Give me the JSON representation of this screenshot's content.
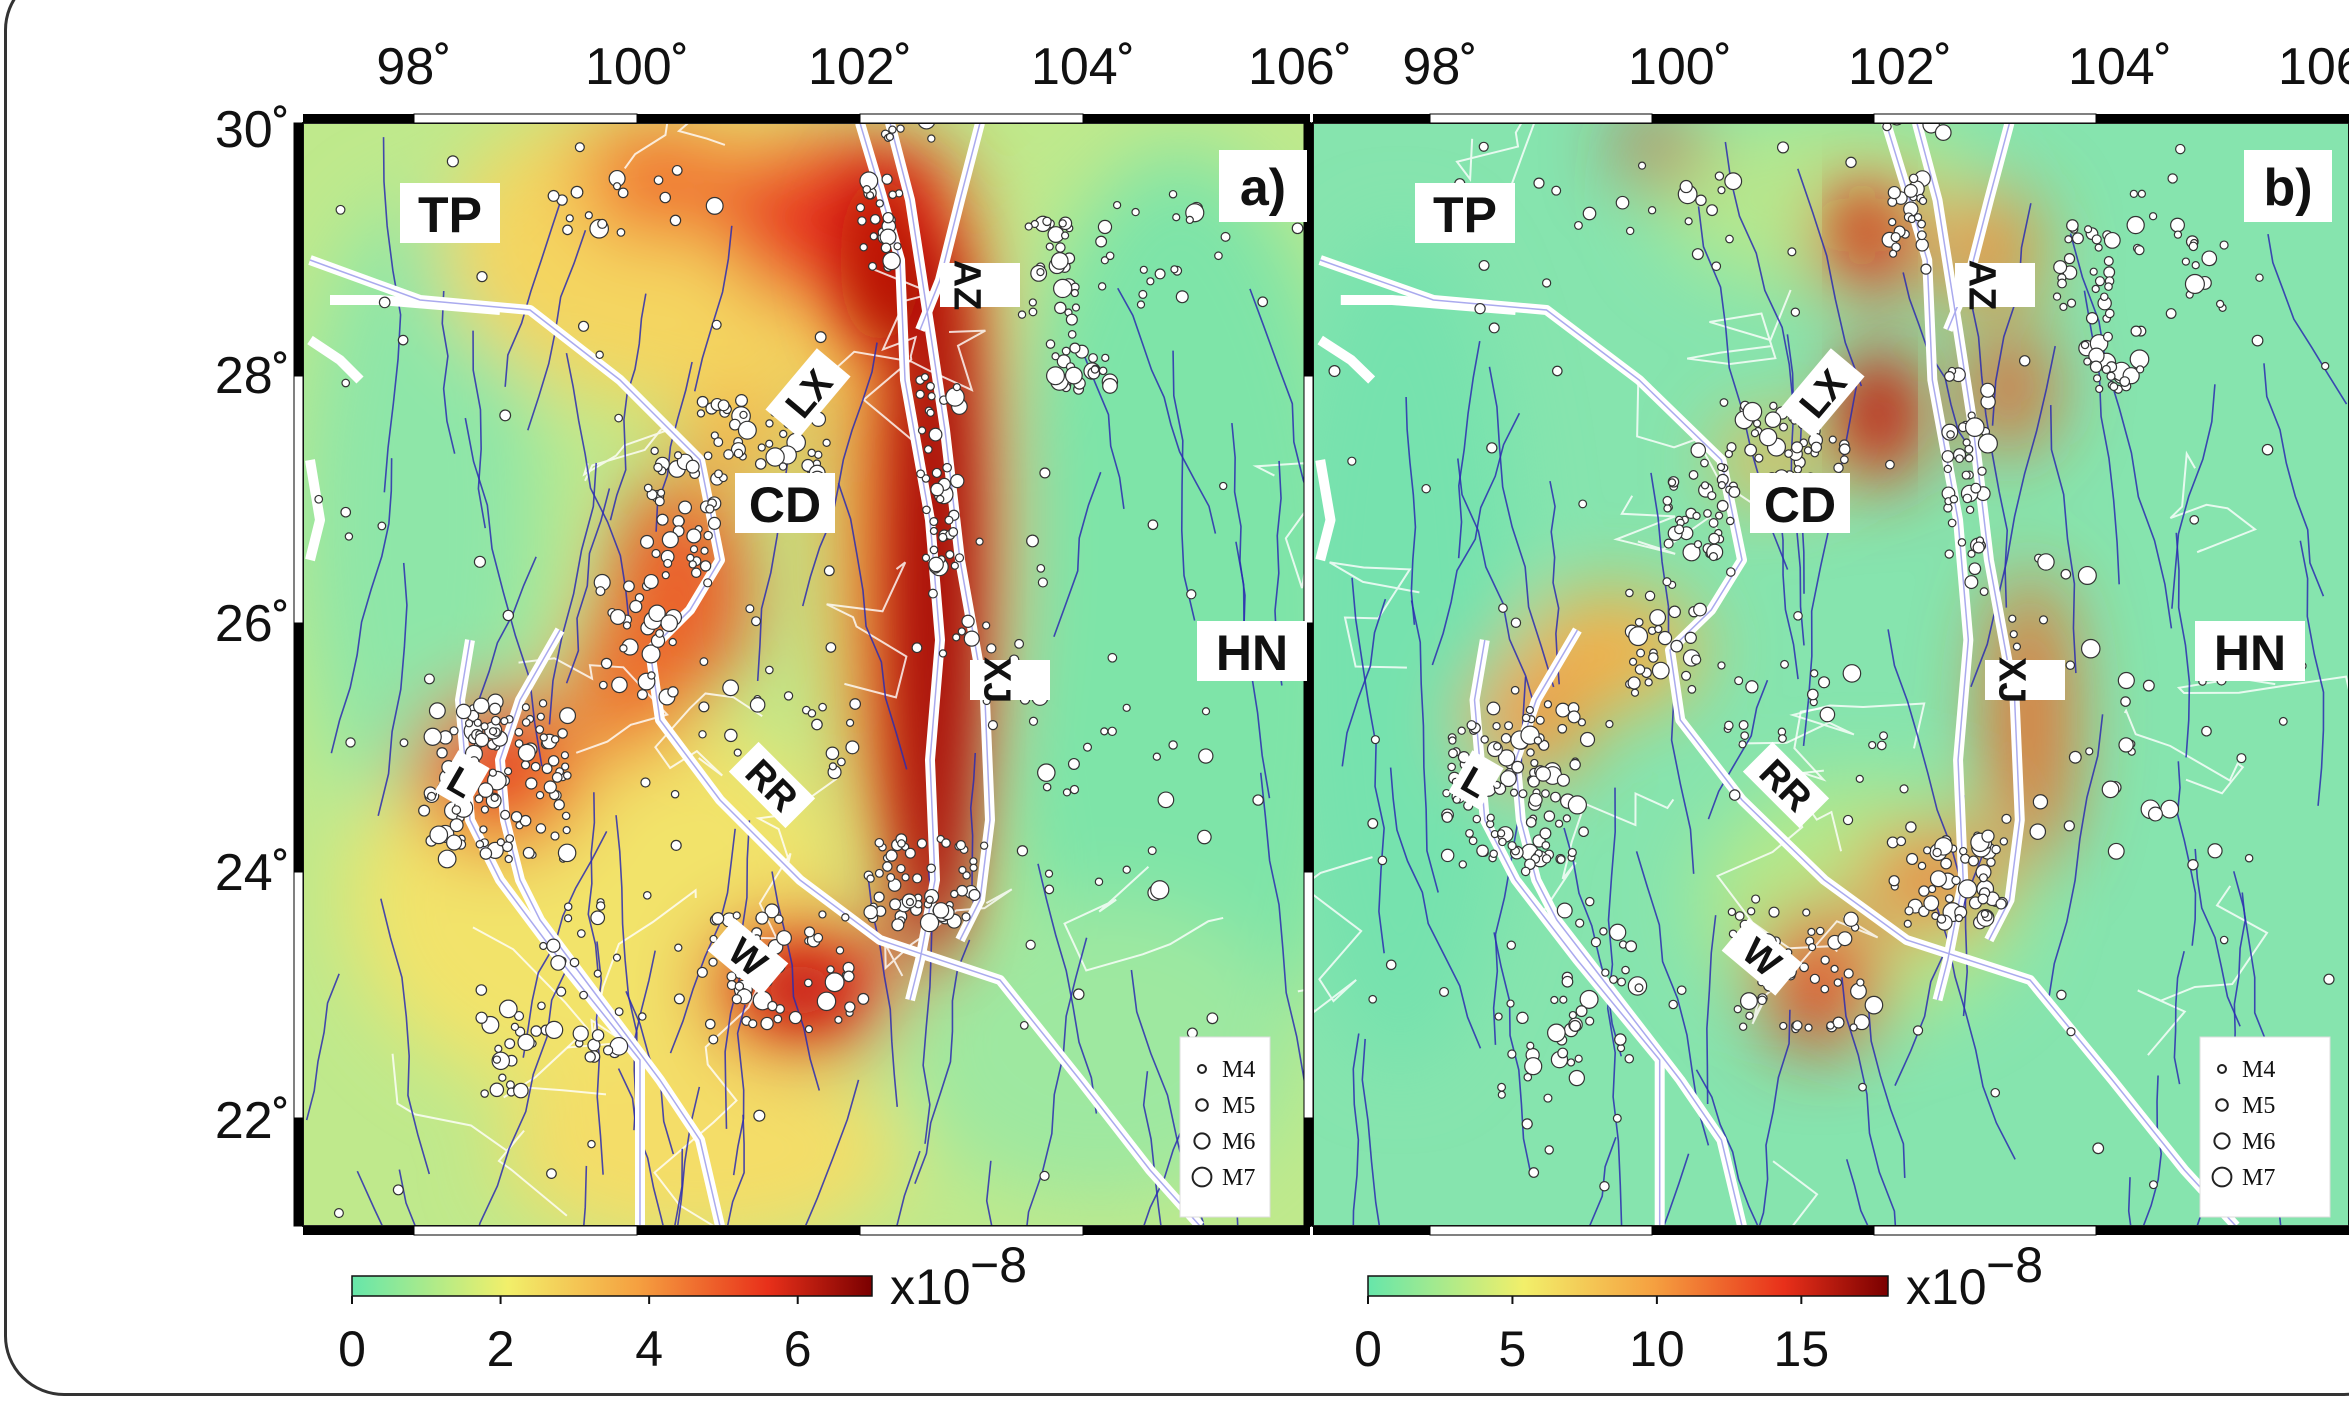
{
  "lon_ticks": [
    "98˚",
    "100˚",
    "102˚",
    "104˚",
    "106˚"
  ],
  "lat_ticks": [
    "30˚",
    "28˚",
    "26˚",
    "24˚",
    "22˚"
  ],
  "panels": [
    {
      "label": "a)",
      "regions": [
        "TP",
        "CD",
        "HN"
      ],
      "faults": [
        "AZ",
        "LX",
        "XJ",
        "RR",
        "W",
        "L"
      ],
      "legend": [
        "M4",
        "M5",
        "M6",
        "M7"
      ],
      "colorbar": {
        "ticks": [
          "0",
          "2",
          "4",
          "6"
        ],
        "multiplier": "x10",
        "exponent": "−8",
        "max": 7
      }
    },
    {
      "label": "b)",
      "regions": [
        "TP",
        "CD",
        "HN"
      ],
      "faults": [
        "AZ",
        "LX",
        "XJ",
        "RR",
        "W",
        "L"
      ],
      "legend": [
        "M4",
        "M5",
        "M6",
        "M7"
      ],
      "colorbar": {
        "ticks": [
          "0",
          "5",
          "10",
          "15"
        ],
        "multiplier": "x10",
        "exponent": "−8",
        "max": 18
      }
    }
  ],
  "colors": {
    "low": "#66e6aa",
    "mid": "#f2ef6a",
    "high": "#e8301a",
    "max": "#8b0000",
    "fault_line": "#2b2bb0",
    "boundary": "#ffffff"
  }
}
